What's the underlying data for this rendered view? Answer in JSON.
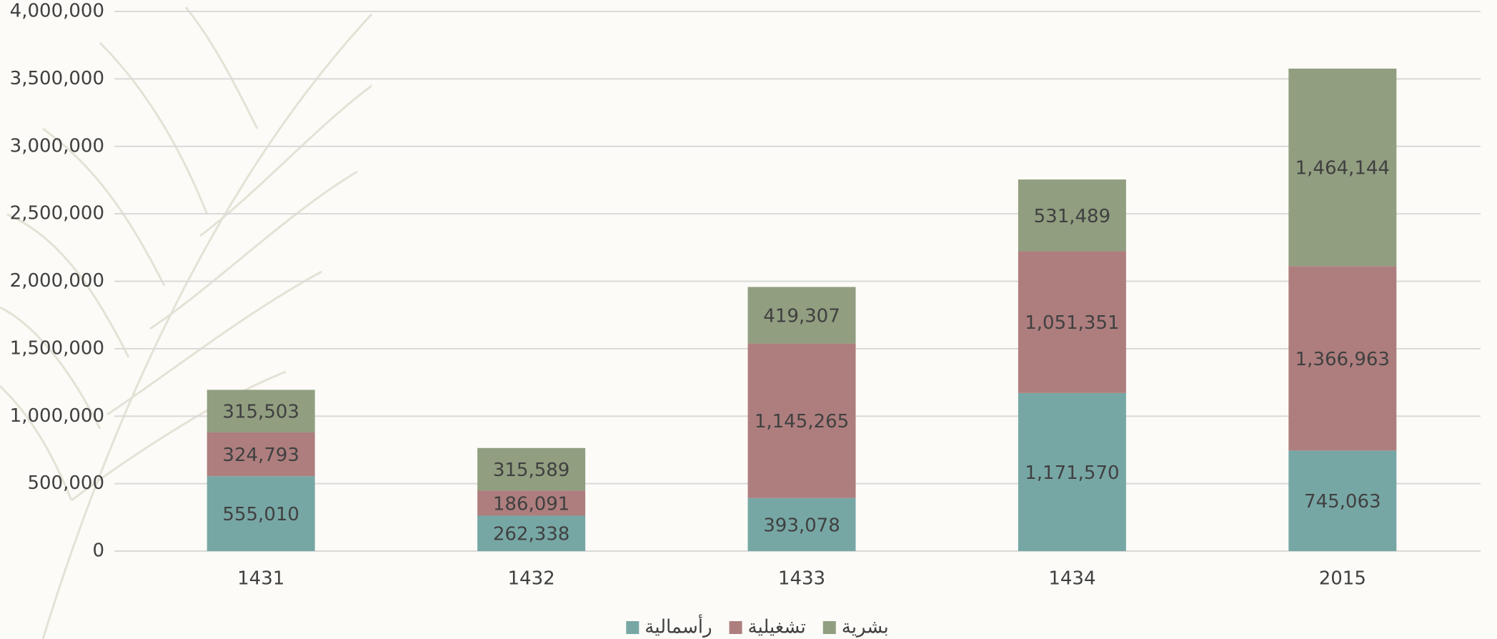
{
  "chart_data": {
    "type": "stacked_bar",
    "categories": [
      "1431",
      "1432",
      "1433",
      "1434",
      "2015"
    ],
    "series": [
      {
        "name": "رأسمالية",
        "color": "#77a7a5",
        "values": [
          555010,
          262338,
          393078,
          1171570,
          745063
        ],
        "value_labels": [
          "555,010",
          "262,338",
          "393,078",
          "1,171,570",
          "745,063"
        ]
      },
      {
        "name": "تشغيلية",
        "color": "#ae7e7e",
        "values": [
          324793,
          186091,
          1145265,
          1051351,
          1366963
        ],
        "value_labels": [
          "324,793",
          "186,091",
          "1,145,265",
          "1,051,351",
          "1,366,963"
        ]
      },
      {
        "name": "بشرية",
        "color": "#919e80",
        "values": [
          315503,
          315589,
          419307,
          531489,
          1464144
        ],
        "value_labels": [
          "315,503",
          "315,589",
          "419,307",
          "531,489",
          "1,464,144"
        ]
      }
    ],
    "ylim": [
      0,
      4000000
    ],
    "yticks": [
      0,
      {
        "value": 500000,
        "label": "500,000"
      },
      {
        "value": 1000000,
        "label": "1,000,000"
      },
      {
        "value": 1500000,
        "label": "1,500,000"
      },
      {
        "value": 2000000,
        "label": "2,000,000"
      },
      {
        "value": 2500000,
        "label": "2,500,000"
      },
      {
        "value": 3000000,
        "label": "3,000,000"
      },
      {
        "value": 3500000,
        "label": "3,500,000"
      },
      {
        "value": 4000000,
        "label": "4,000,000"
      }
    ],
    "grid": true,
    "legend": "bottom"
  }
}
